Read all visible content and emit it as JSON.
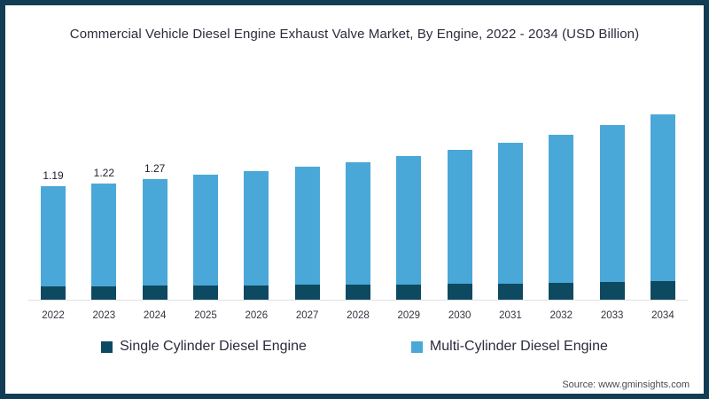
{
  "title": "Commercial Vehicle Diesel Engine Exhaust Valve Market, By Engine, 2022 - 2034 (USD Billion)",
  "source": "Source: www.gminsights.com",
  "colors": {
    "frame_border": "#123d54",
    "single_cylinder": "#0d4a61",
    "multi_cylinder": "#4aa8d8",
    "axis_line": "#e1e1e1"
  },
  "legend": [
    {
      "label": "Single Cylinder Diesel Engine",
      "color": "#0d4a61"
    },
    {
      "label": "Multi-Cylinder Diesel Engine",
      "color": "#4aa8d8"
    }
  ],
  "chart_data": {
    "type": "bar",
    "stacked": true,
    "title": "Commercial Vehicle Diesel Engine Exhaust Valve Market, By Engine, 2022 - 2034 (USD Billion)",
    "categories": [
      "2022",
      "2023",
      "2024",
      "2025",
      "2026",
      "2027",
      "2028",
      "2029",
      "2030",
      "2031",
      "2032",
      "2033",
      "2034"
    ],
    "series": [
      {
        "name": "Single Cylinder Diesel Engine",
        "color": "#0d4a61",
        "values": [
          0.14,
          0.14,
          0.15,
          0.15,
          0.15,
          0.16,
          0.16,
          0.16,
          0.17,
          0.17,
          0.18,
          0.19,
          0.2
        ]
      },
      {
        "name": "Multi-Cylinder Diesel Engine",
        "color": "#4aa8d8",
        "values": [
          1.05,
          1.08,
          1.12,
          1.16,
          1.2,
          1.24,
          1.28,
          1.35,
          1.4,
          1.48,
          1.55,
          1.64,
          1.74
        ]
      }
    ],
    "totals": [
      1.19,
      1.22,
      1.27,
      1.31,
      1.35,
      1.4,
      1.44,
      1.51,
      1.57,
      1.65,
      1.73,
      1.83,
      1.94
    ],
    "data_labels": [
      "1.19",
      "1.22",
      "1.27",
      "",
      "",
      "",
      "",
      "",
      "",
      "",
      "",
      "",
      ""
    ],
    "xlabel": "",
    "ylabel": "",
    "ylim": [
      0,
      2.0
    ],
    "grid": false,
    "legend_position": "bottom"
  }
}
